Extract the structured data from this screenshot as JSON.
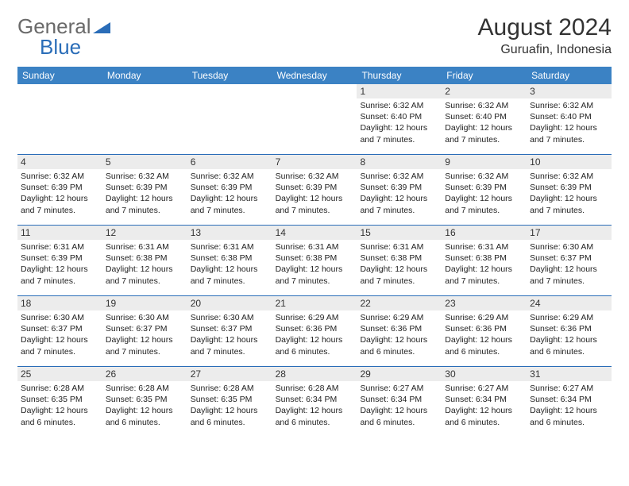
{
  "logo": {
    "text1": "General",
    "text2": "Blue"
  },
  "title": "August 2024",
  "location": "Guruafin, Indonesia",
  "colors": {
    "header_bg": "#3b82c4",
    "header_text": "#ffffff",
    "week_border": "#2a6db8",
    "daynum_bg": "#ececec",
    "logo_general": "#6a6a6a",
    "logo_blue": "#2a6db8",
    "text": "#333333"
  },
  "typography": {
    "title_fontsize": 30,
    "location_fontsize": 16,
    "dow_fontsize": 12,
    "daynum_fontsize": 12,
    "info_fontsize": 10.5
  },
  "day_of_week": [
    "Sunday",
    "Monday",
    "Tuesday",
    "Wednesday",
    "Thursday",
    "Friday",
    "Saturday"
  ],
  "labels": {
    "sunrise": "Sunrise:",
    "sunset": "Sunset:",
    "daylight": "Daylight:"
  },
  "weeks": [
    [
      {
        "blank": true
      },
      {
        "blank": true
      },
      {
        "blank": true
      },
      {
        "blank": true
      },
      {
        "day": "1",
        "sunrise": "6:32 AM",
        "sunset": "6:40 PM",
        "daylight": "12 hours and 7 minutes."
      },
      {
        "day": "2",
        "sunrise": "6:32 AM",
        "sunset": "6:40 PM",
        "daylight": "12 hours and 7 minutes."
      },
      {
        "day": "3",
        "sunrise": "6:32 AM",
        "sunset": "6:40 PM",
        "daylight": "12 hours and 7 minutes."
      }
    ],
    [
      {
        "day": "4",
        "sunrise": "6:32 AM",
        "sunset": "6:39 PM",
        "daylight": "12 hours and 7 minutes."
      },
      {
        "day": "5",
        "sunrise": "6:32 AM",
        "sunset": "6:39 PM",
        "daylight": "12 hours and 7 minutes."
      },
      {
        "day": "6",
        "sunrise": "6:32 AM",
        "sunset": "6:39 PM",
        "daylight": "12 hours and 7 minutes."
      },
      {
        "day": "7",
        "sunrise": "6:32 AM",
        "sunset": "6:39 PM",
        "daylight": "12 hours and 7 minutes."
      },
      {
        "day": "8",
        "sunrise": "6:32 AM",
        "sunset": "6:39 PM",
        "daylight": "12 hours and 7 minutes."
      },
      {
        "day": "9",
        "sunrise": "6:32 AM",
        "sunset": "6:39 PM",
        "daylight": "12 hours and 7 minutes."
      },
      {
        "day": "10",
        "sunrise": "6:32 AM",
        "sunset": "6:39 PM",
        "daylight": "12 hours and 7 minutes."
      }
    ],
    [
      {
        "day": "11",
        "sunrise": "6:31 AM",
        "sunset": "6:39 PM",
        "daylight": "12 hours and 7 minutes."
      },
      {
        "day": "12",
        "sunrise": "6:31 AM",
        "sunset": "6:38 PM",
        "daylight": "12 hours and 7 minutes."
      },
      {
        "day": "13",
        "sunrise": "6:31 AM",
        "sunset": "6:38 PM",
        "daylight": "12 hours and 7 minutes."
      },
      {
        "day": "14",
        "sunrise": "6:31 AM",
        "sunset": "6:38 PM",
        "daylight": "12 hours and 7 minutes."
      },
      {
        "day": "15",
        "sunrise": "6:31 AM",
        "sunset": "6:38 PM",
        "daylight": "12 hours and 7 minutes."
      },
      {
        "day": "16",
        "sunrise": "6:31 AM",
        "sunset": "6:38 PM",
        "daylight": "12 hours and 7 minutes."
      },
      {
        "day": "17",
        "sunrise": "6:30 AM",
        "sunset": "6:37 PM",
        "daylight": "12 hours and 7 minutes."
      }
    ],
    [
      {
        "day": "18",
        "sunrise": "6:30 AM",
        "sunset": "6:37 PM",
        "daylight": "12 hours and 7 minutes."
      },
      {
        "day": "19",
        "sunrise": "6:30 AM",
        "sunset": "6:37 PM",
        "daylight": "12 hours and 7 minutes."
      },
      {
        "day": "20",
        "sunrise": "6:30 AM",
        "sunset": "6:37 PM",
        "daylight": "12 hours and 7 minutes."
      },
      {
        "day": "21",
        "sunrise": "6:29 AM",
        "sunset": "6:36 PM",
        "daylight": "12 hours and 6 minutes."
      },
      {
        "day": "22",
        "sunrise": "6:29 AM",
        "sunset": "6:36 PM",
        "daylight": "12 hours and 6 minutes."
      },
      {
        "day": "23",
        "sunrise": "6:29 AM",
        "sunset": "6:36 PM",
        "daylight": "12 hours and 6 minutes."
      },
      {
        "day": "24",
        "sunrise": "6:29 AM",
        "sunset": "6:36 PM",
        "daylight": "12 hours and 6 minutes."
      }
    ],
    [
      {
        "day": "25",
        "sunrise": "6:28 AM",
        "sunset": "6:35 PM",
        "daylight": "12 hours and 6 minutes."
      },
      {
        "day": "26",
        "sunrise": "6:28 AM",
        "sunset": "6:35 PM",
        "daylight": "12 hours and 6 minutes."
      },
      {
        "day": "27",
        "sunrise": "6:28 AM",
        "sunset": "6:35 PM",
        "daylight": "12 hours and 6 minutes."
      },
      {
        "day": "28",
        "sunrise": "6:28 AM",
        "sunset": "6:34 PM",
        "daylight": "12 hours and 6 minutes."
      },
      {
        "day": "29",
        "sunrise": "6:27 AM",
        "sunset": "6:34 PM",
        "daylight": "12 hours and 6 minutes."
      },
      {
        "day": "30",
        "sunrise": "6:27 AM",
        "sunset": "6:34 PM",
        "daylight": "12 hours and 6 minutes."
      },
      {
        "day": "31",
        "sunrise": "6:27 AM",
        "sunset": "6:34 PM",
        "daylight": "12 hours and 6 minutes."
      }
    ]
  ]
}
